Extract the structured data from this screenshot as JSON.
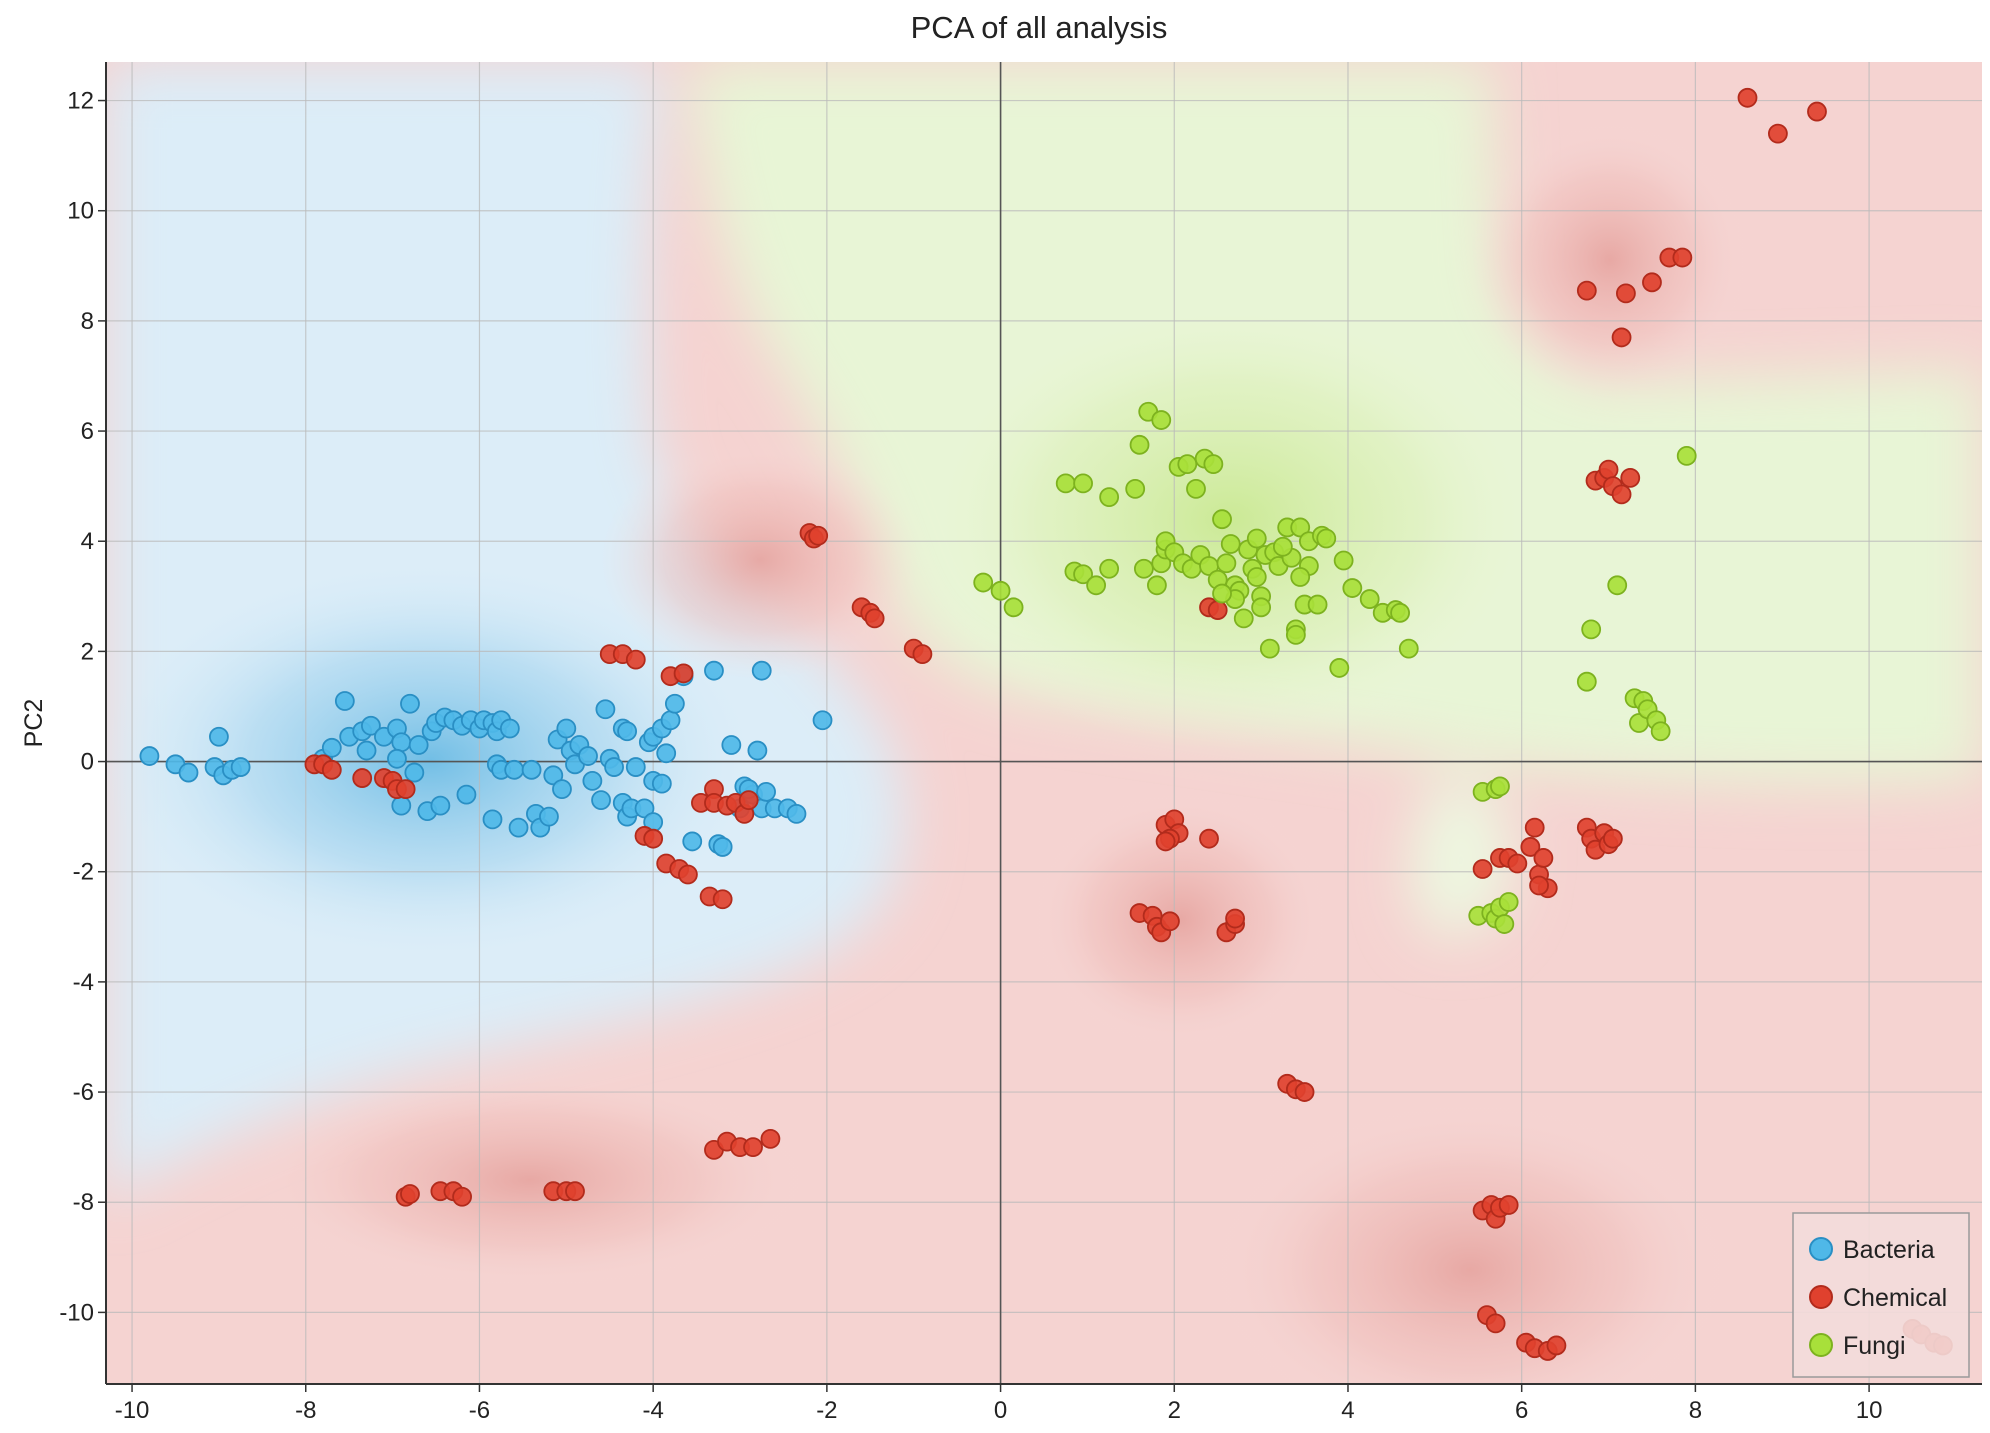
{
  "chart_data": {
    "type": "scatter",
    "title": "PCA of all analysis",
    "xlabel": "",
    "ylabel": "PC2",
    "xlim": [
      -10.3,
      11.3
    ],
    "ylim": [
      -11.3,
      12.7
    ],
    "x_ticks": [
      -10,
      -8,
      -6,
      -4,
      -2,
      0,
      2,
      4,
      6,
      8,
      10
    ],
    "y_ticks": [
      -10,
      -8,
      -6,
      -4,
      -2,
      0,
      2,
      4,
      6,
      8,
      10,
      12
    ],
    "grid": true,
    "legend_position": "bottom-right",
    "colors": {
      "Bacteria": "#4fb8e8",
      "Chemical": "#e0412e",
      "Fungi": "#a8e03a",
      "region_bacteria": "#b4dcf0",
      "region_chemical": "#f2c4c0",
      "region_fungi": "#dff2c4"
    },
    "series": [
      {
        "name": "Bacteria",
        "points": [
          [
            -9.8,
            0.1
          ],
          [
            -9.5,
            -0.05
          ],
          [
            -9.35,
            -0.2
          ],
          [
            -9.0,
            0.45
          ],
          [
            -9.05,
            -0.1
          ],
          [
            -8.95,
            -0.25
          ],
          [
            -8.85,
            -0.15
          ],
          [
            -8.75,
            -0.1
          ],
          [
            -7.8,
            0.05
          ],
          [
            -7.7,
            0.25
          ],
          [
            -7.55,
            1.1
          ],
          [
            -7.5,
            0.45
          ],
          [
            -7.35,
            0.55
          ],
          [
            -7.25,
            0.65
          ],
          [
            -7.3,
            0.2
          ],
          [
            -7.1,
            0.45
          ],
          [
            -6.95,
            0.6
          ],
          [
            -6.9,
            0.35
          ],
          [
            -6.95,
            0.05
          ],
          [
            -6.8,
            1.05
          ],
          [
            -6.75,
            -0.2
          ],
          [
            -6.9,
            -0.8
          ],
          [
            -6.7,
            0.3
          ],
          [
            -6.6,
            -0.9
          ],
          [
            -6.55,
            0.55
          ],
          [
            -6.5,
            0.7
          ],
          [
            -6.45,
            -0.8
          ],
          [
            -6.4,
            0.8
          ],
          [
            -6.3,
            0.75
          ],
          [
            -6.2,
            0.65
          ],
          [
            -6.15,
            -0.6
          ],
          [
            -6.1,
            0.75
          ],
          [
            -6.0,
            0.6
          ],
          [
            -5.95,
            0.75
          ],
          [
            -5.85,
            0.7
          ],
          [
            -5.8,
            0.55
          ],
          [
            -5.8,
            -0.05
          ],
          [
            -5.75,
            -0.15
          ],
          [
            -5.85,
            -1.05
          ],
          [
            -5.75,
            0.75
          ],
          [
            -5.65,
            0.6
          ],
          [
            -5.6,
            -0.15
          ],
          [
            -5.55,
            -1.2
          ],
          [
            -5.4,
            -0.15
          ],
          [
            -5.35,
            -0.95
          ],
          [
            -5.3,
            -1.2
          ],
          [
            -5.2,
            -1.0
          ],
          [
            -5.15,
            -0.25
          ],
          [
            -5.1,
            0.4
          ],
          [
            -5.05,
            -0.5
          ],
          [
            -5.0,
            0.6
          ],
          [
            -4.95,
            0.2
          ],
          [
            -4.9,
            -0.05
          ],
          [
            -4.85,
            0.3
          ],
          [
            -4.75,
            0.1
          ],
          [
            -4.7,
            -0.35
          ],
          [
            -4.6,
            -0.7
          ],
          [
            -4.55,
            0.95
          ],
          [
            -4.5,
            0.05
          ],
          [
            -4.45,
            -0.1
          ],
          [
            -4.35,
            0.6
          ],
          [
            -4.35,
            -0.75
          ],
          [
            -4.3,
            0.55
          ],
          [
            -4.3,
            -1.0
          ],
          [
            -4.25,
            -0.85
          ],
          [
            -4.2,
            -0.1
          ],
          [
            -4.1,
            -0.85
          ],
          [
            -4.05,
            0.35
          ],
          [
            -4.0,
            -0.35
          ],
          [
            -4.0,
            0.45
          ],
          [
            -4.0,
            -1.1
          ],
          [
            -3.9,
            0.6
          ],
          [
            -3.9,
            -0.4
          ],
          [
            -3.85,
            0.15
          ],
          [
            -3.8,
            0.75
          ],
          [
            -3.75,
            1.05
          ],
          [
            -3.65,
            1.55
          ],
          [
            -3.55,
            -1.45
          ],
          [
            -3.3,
            1.65
          ],
          [
            -3.25,
            -1.5
          ],
          [
            -3.2,
            -1.55
          ],
          [
            -3.1,
            0.3
          ],
          [
            -2.95,
            -0.45
          ],
          [
            -2.85,
            -0.6
          ],
          [
            -2.8,
            0.2
          ],
          [
            -2.75,
            1.65
          ],
          [
            -2.75,
            -0.85
          ],
          [
            -2.6,
            -0.85
          ],
          [
            -2.45,
            -0.85
          ],
          [
            -2.35,
            -0.95
          ],
          [
            -2.05,
            0.75
          ],
          [
            -2.9,
            -0.5
          ],
          [
            -3.0,
            -0.85
          ],
          [
            -2.7,
            -0.55
          ]
        ]
      },
      {
        "name": "Chemical",
        "points": [
          [
            -7.9,
            -0.05
          ],
          [
            -7.8,
            -0.05
          ],
          [
            -7.7,
            -0.15
          ],
          [
            -7.35,
            -0.3
          ],
          [
            -7.1,
            -0.3
          ],
          [
            -7.0,
            -0.35
          ],
          [
            -6.95,
            -0.5
          ],
          [
            -6.85,
            -0.5
          ],
          [
            -4.5,
            1.95
          ],
          [
            -4.35,
            1.95
          ],
          [
            -4.2,
            1.85
          ],
          [
            -3.8,
            1.55
          ],
          [
            -3.65,
            1.6
          ],
          [
            -3.3,
            -0.5
          ],
          [
            -3.45,
            -0.75
          ],
          [
            -3.3,
            -0.75
          ],
          [
            -3.15,
            -0.8
          ],
          [
            -3.05,
            -0.75
          ],
          [
            -2.95,
            -0.95
          ],
          [
            -2.9,
            -0.7
          ],
          [
            -4.1,
            -1.35
          ],
          [
            -4.0,
            -1.4
          ],
          [
            -3.85,
            -1.85
          ],
          [
            -3.7,
            -1.95
          ],
          [
            -3.6,
            -2.05
          ],
          [
            -3.35,
            -2.45
          ],
          [
            -3.2,
            -2.5
          ],
          [
            -2.2,
            4.15
          ],
          [
            -2.15,
            4.05
          ],
          [
            -2.1,
            4.1
          ],
          [
            -1.6,
            2.8
          ],
          [
            -1.5,
            2.7
          ],
          [
            -1.45,
            2.6
          ],
          [
            -1.0,
            2.05
          ],
          [
            -0.9,
            1.95
          ],
          [
            -6.85,
            -7.9
          ],
          [
            -6.8,
            -7.85
          ],
          [
            -6.45,
            -7.8
          ],
          [
            -6.3,
            -7.8
          ],
          [
            -6.2,
            -7.9
          ],
          [
            -5.15,
            -7.8
          ],
          [
            -5.0,
            -7.8
          ],
          [
            -4.9,
            -7.8
          ],
          [
            -3.3,
            -7.05
          ],
          [
            -3.15,
            -6.9
          ],
          [
            -3.0,
            -7.0
          ],
          [
            -2.85,
            -7.0
          ],
          [
            -2.65,
            -6.85
          ],
          [
            1.9,
            -1.15
          ],
          [
            2.0,
            -1.05
          ],
          [
            2.05,
            -1.3
          ],
          [
            1.95,
            -1.4
          ],
          [
            1.9,
            -1.45
          ],
          [
            2.4,
            -1.4
          ],
          [
            1.6,
            -2.75
          ],
          [
            1.75,
            -2.8
          ],
          [
            1.8,
            -3.0
          ],
          [
            1.85,
            -3.1
          ],
          [
            1.95,
            -2.9
          ],
          [
            2.6,
            -3.1
          ],
          [
            2.7,
            -2.95
          ],
          [
            2.7,
            -2.85
          ],
          [
            2.4,
            2.8
          ],
          [
            2.5,
            2.75
          ],
          [
            3.3,
            -5.85
          ],
          [
            3.4,
            -5.95
          ],
          [
            3.5,
            -6.0
          ],
          [
            5.55,
            -8.15
          ],
          [
            5.65,
            -8.05
          ],
          [
            5.7,
            -8.3
          ],
          [
            5.75,
            -8.1
          ],
          [
            5.85,
            -8.05
          ],
          [
            5.6,
            -10.05
          ],
          [
            5.7,
            -10.2
          ],
          [
            6.05,
            -10.55
          ],
          [
            6.15,
            -10.65
          ],
          [
            6.3,
            -10.7
          ],
          [
            6.4,
            -10.6
          ],
          [
            5.55,
            -1.95
          ],
          [
            5.75,
            -1.75
          ],
          [
            5.85,
            -1.75
          ],
          [
            5.95,
            -1.85
          ],
          [
            6.1,
            -1.55
          ],
          [
            6.15,
            -1.2
          ],
          [
            6.2,
            -2.05
          ],
          [
            6.25,
            -1.75
          ],
          [
            6.3,
            -2.3
          ],
          [
            6.2,
            -2.25
          ],
          [
            6.75,
            -1.2
          ],
          [
            6.8,
            -1.4
          ],
          [
            6.85,
            -1.6
          ],
          [
            6.95,
            -1.3
          ],
          [
            7.0,
            -1.5
          ],
          [
            7.05,
            -1.4
          ],
          [
            6.85,
            5.1
          ],
          [
            6.95,
            5.15
          ],
          [
            7.0,
            5.3
          ],
          [
            7.05,
            5.0
          ],
          [
            7.15,
            4.85
          ],
          [
            7.25,
            5.15
          ],
          [
            6.75,
            8.55
          ],
          [
            7.15,
            7.7
          ],
          [
            7.2,
            8.5
          ],
          [
            7.5,
            8.7
          ],
          [
            7.7,
            9.15
          ],
          [
            7.85,
            9.15
          ],
          [
            8.6,
            12.05
          ],
          [
            8.95,
            11.4
          ],
          [
            9.4,
            11.8
          ],
          [
            10.5,
            -10.3
          ],
          [
            10.6,
            -10.4
          ],
          [
            10.75,
            -10.55
          ],
          [
            10.85,
            -10.6
          ]
        ]
      },
      {
        "name": "Fungi",
        "points": [
          [
            -0.2,
            3.25
          ],
          [
            0.0,
            3.1
          ],
          [
            0.15,
            2.8
          ],
          [
            0.75,
            5.05
          ],
          [
            0.95,
            5.05
          ],
          [
            0.85,
            3.45
          ],
          [
            0.95,
            3.4
          ],
          [
            1.1,
            3.2
          ],
          [
            1.25,
            3.5
          ],
          [
            1.25,
            4.8
          ],
          [
            1.55,
            4.95
          ],
          [
            1.6,
            5.75
          ],
          [
            1.65,
            3.5
          ],
          [
            1.7,
            6.35
          ],
          [
            1.85,
            6.2
          ],
          [
            1.8,
            3.2
          ],
          [
            1.85,
            3.6
          ],
          [
            1.9,
            3.85
          ],
          [
            1.9,
            4.0
          ],
          [
            2.0,
            3.8
          ],
          [
            2.05,
            5.35
          ],
          [
            2.1,
            3.6
          ],
          [
            2.15,
            5.4
          ],
          [
            2.2,
            3.5
          ],
          [
            2.25,
            4.95
          ],
          [
            2.3,
            3.75
          ],
          [
            2.35,
            5.5
          ],
          [
            2.4,
            3.55
          ],
          [
            2.45,
            5.4
          ],
          [
            2.5,
            3.3
          ],
          [
            2.55,
            4.4
          ],
          [
            2.6,
            3.6
          ],
          [
            2.65,
            3.95
          ],
          [
            2.7,
            3.2
          ],
          [
            2.75,
            3.1
          ],
          [
            2.8,
            2.6
          ],
          [
            2.85,
            3.85
          ],
          [
            2.9,
            3.5
          ],
          [
            2.95,
            4.05
          ],
          [
            3.0,
            3.0
          ],
          [
            3.05,
            3.75
          ],
          [
            3.1,
            2.05
          ],
          [
            3.15,
            3.8
          ],
          [
            3.2,
            3.55
          ],
          [
            3.3,
            4.25
          ],
          [
            3.35,
            3.7
          ],
          [
            3.4,
            2.4
          ],
          [
            3.4,
            2.3
          ],
          [
            3.45,
            4.25
          ],
          [
            3.5,
            2.85
          ],
          [
            3.55,
            3.55
          ],
          [
            3.55,
            4.0
          ],
          [
            3.65,
            2.85
          ],
          [
            3.7,
            4.1
          ],
          [
            3.75,
            4.05
          ],
          [
            3.9,
            1.7
          ],
          [
            3.95,
            3.65
          ],
          [
            4.05,
            3.15
          ],
          [
            4.25,
            2.95
          ],
          [
            4.4,
            2.7
          ],
          [
            4.55,
            2.75
          ],
          [
            4.7,
            2.05
          ],
          [
            4.6,
            2.7
          ],
          [
            3.45,
            3.35
          ],
          [
            3.0,
            2.8
          ],
          [
            2.7,
            2.95
          ],
          [
            2.55,
            3.05
          ],
          [
            3.25,
            3.9
          ],
          [
            2.95,
            3.35
          ],
          [
            7.9,
            5.55
          ],
          [
            7.1,
            3.2
          ],
          [
            6.8,
            2.4
          ],
          [
            6.75,
            1.45
          ],
          [
            7.3,
            1.15
          ],
          [
            7.4,
            1.1
          ],
          [
            7.35,
            0.7
          ],
          [
            7.45,
            0.95
          ],
          [
            7.55,
            0.75
          ],
          [
            7.6,
            0.55
          ],
          [
            5.55,
            -0.55
          ],
          [
            5.7,
            -0.5
          ],
          [
            5.75,
            -0.45
          ],
          [
            5.5,
            -2.8
          ],
          [
            5.65,
            -2.75
          ],
          [
            5.7,
            -2.85
          ],
          [
            5.75,
            -2.65
          ],
          [
            5.8,
            -2.95
          ],
          [
            5.85,
            -2.55
          ]
        ]
      }
    ]
  }
}
